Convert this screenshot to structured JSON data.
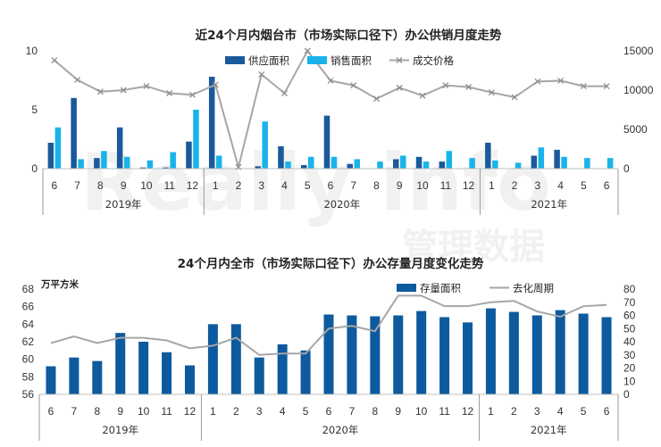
{
  "watermark": {
    "text": "Really info",
    "cn": "管理数据"
  },
  "colors": {
    "supply": "#1a5a9c",
    "sales": "#19b3ea",
    "price": "#a6a6a6",
    "stock": "#0d5a9e",
    "cycle": "#a6a6a6"
  },
  "chart_data": [
    {
      "type": "bar",
      "title": "近24个月内烟台市（市场实际口径下）办公供销月度走势",
      "categories": [
        "6",
        "7",
        "8",
        "9",
        "10",
        "11",
        "12",
        "1",
        "2",
        "3",
        "4",
        "5",
        "6",
        "7",
        "8",
        "9",
        "10",
        "11",
        "12",
        "1",
        "2",
        "3",
        "4",
        "5",
        "6"
      ],
      "year_groups": [
        {
          "label": "2019年",
          "start": 0,
          "end": 6
        },
        {
          "label": "2020年",
          "start": 7,
          "end": 18
        },
        {
          "label": "2021年",
          "start": 19,
          "end": 24
        }
      ],
      "left_axis": {
        "ylim": [
          0,
          10
        ],
        "ticks": [
          "0",
          "5",
          "10"
        ]
      },
      "right_axis": {
        "ylim": [
          0,
          15000
        ],
        "ticks": [
          "0",
          "5000",
          "10000",
          "15000"
        ]
      },
      "legend_position": "top-center",
      "series": [
        {
          "name": "供应面积",
          "type": "bar",
          "axis": "left",
          "color_key": "supply",
          "values": [
            2.2,
            6.0,
            0.9,
            3.5,
            0.1,
            0.1,
            2.3,
            7.8,
            0.0,
            0.2,
            1.9,
            0.3,
            4.5,
            0.4,
            0.0,
            0.8,
            1.0,
            0.6,
            0.0,
            2.2,
            0.0,
            1.1,
            1.6,
            0.0,
            0.0
          ]
        },
        {
          "name": "销售面积",
          "type": "bar",
          "axis": "left",
          "color_key": "sales",
          "values": [
            3.5,
            0.8,
            1.5,
            1.0,
            0.7,
            1.4,
            5.0,
            1.1,
            0.0,
            4.0,
            0.6,
            1.0,
            1.0,
            0.8,
            0.6,
            1.1,
            0.6,
            1.5,
            0.9,
            0.7,
            0.5,
            1.8,
            1.0,
            0.9,
            0.9
          ]
        },
        {
          "name": "成交价格",
          "type": "line",
          "axis": "right",
          "color_key": "price",
          "values": [
            13800,
            11300,
            9800,
            10000,
            10500,
            9600,
            9400,
            10700,
            200,
            12000,
            9600,
            15000,
            11200,
            10600,
            8900,
            10300,
            9300,
            10600,
            10400,
            9700,
            9100,
            11100,
            11200,
            10500,
            10500
          ]
        }
      ]
    },
    {
      "type": "bar",
      "title": "24个月内全市（市场实际口径下）办公存量月度变化走势",
      "unit_label": "万平方米",
      "categories": [
        "6",
        "7",
        "8",
        "9",
        "10",
        "11",
        "12",
        "1",
        "2",
        "3",
        "4",
        "5",
        "6",
        "7",
        "8",
        "9",
        "10",
        "11",
        "12",
        "1",
        "2",
        "3",
        "4",
        "5",
        "6"
      ],
      "year_groups": [
        {
          "label": "2019年",
          "start": 0,
          "end": 6
        },
        {
          "label": "2020年",
          "start": 7,
          "end": 18
        },
        {
          "label": "2021年",
          "start": 19,
          "end": 24
        }
      ],
      "left_axis": {
        "ylim": [
          56,
          68
        ],
        "ticks": [
          "56",
          "58",
          "60",
          "62",
          "64",
          "66",
          "68"
        ]
      },
      "right_axis": {
        "ylim": [
          0,
          80
        ],
        "ticks": [
          "0",
          "10",
          "20",
          "30",
          "40",
          "50",
          "60",
          "70",
          "80"
        ]
      },
      "legend_position": "top-center",
      "series": [
        {
          "name": "存量面积",
          "type": "bar",
          "axis": "left",
          "color_key": "stock",
          "values": [
            59.2,
            60.2,
            59.8,
            63.0,
            62.0,
            60.8,
            59.3,
            64.0,
            64.0,
            60.2,
            61.7,
            61.0,
            65.1,
            65.0,
            64.9,
            65.0,
            65.5,
            64.8,
            64.2,
            65.8,
            65.4,
            65.0,
            65.6,
            65.2,
            64.8
          ]
        },
        {
          "name": "去化周期",
          "type": "line",
          "axis": "right",
          "color_key": "cycle",
          "values": [
            39,
            44,
            39,
            43,
            43,
            41,
            35,
            37,
            43,
            30,
            31,
            31,
            50,
            52,
            48,
            75,
            75,
            67,
            67,
            70,
            71,
            63,
            59,
            67,
            68
          ]
        }
      ]
    }
  ]
}
